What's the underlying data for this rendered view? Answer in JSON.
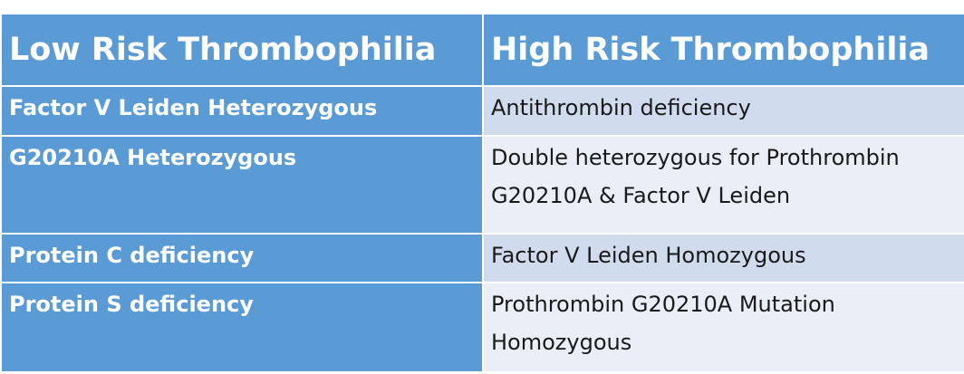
{
  "table": {
    "header": [
      "Low Risk Thrombophilia",
      "High Risk Thrombophilia"
    ],
    "rows": [
      [
        "Factor V Leiden Heterozygous",
        "Antithrombin deficiency"
      ],
      [
        "G20210A Heterozygous",
        "Double heterozygous for Prothrombin G20210A & Factor V Leiden"
      ],
      [
        "Protein C deficiency",
        "Factor V Leiden Homozygous"
      ],
      [
        "Protein S deficiency",
        "Prothrombin G20210A Mutation Homozygous"
      ]
    ]
  }
}
